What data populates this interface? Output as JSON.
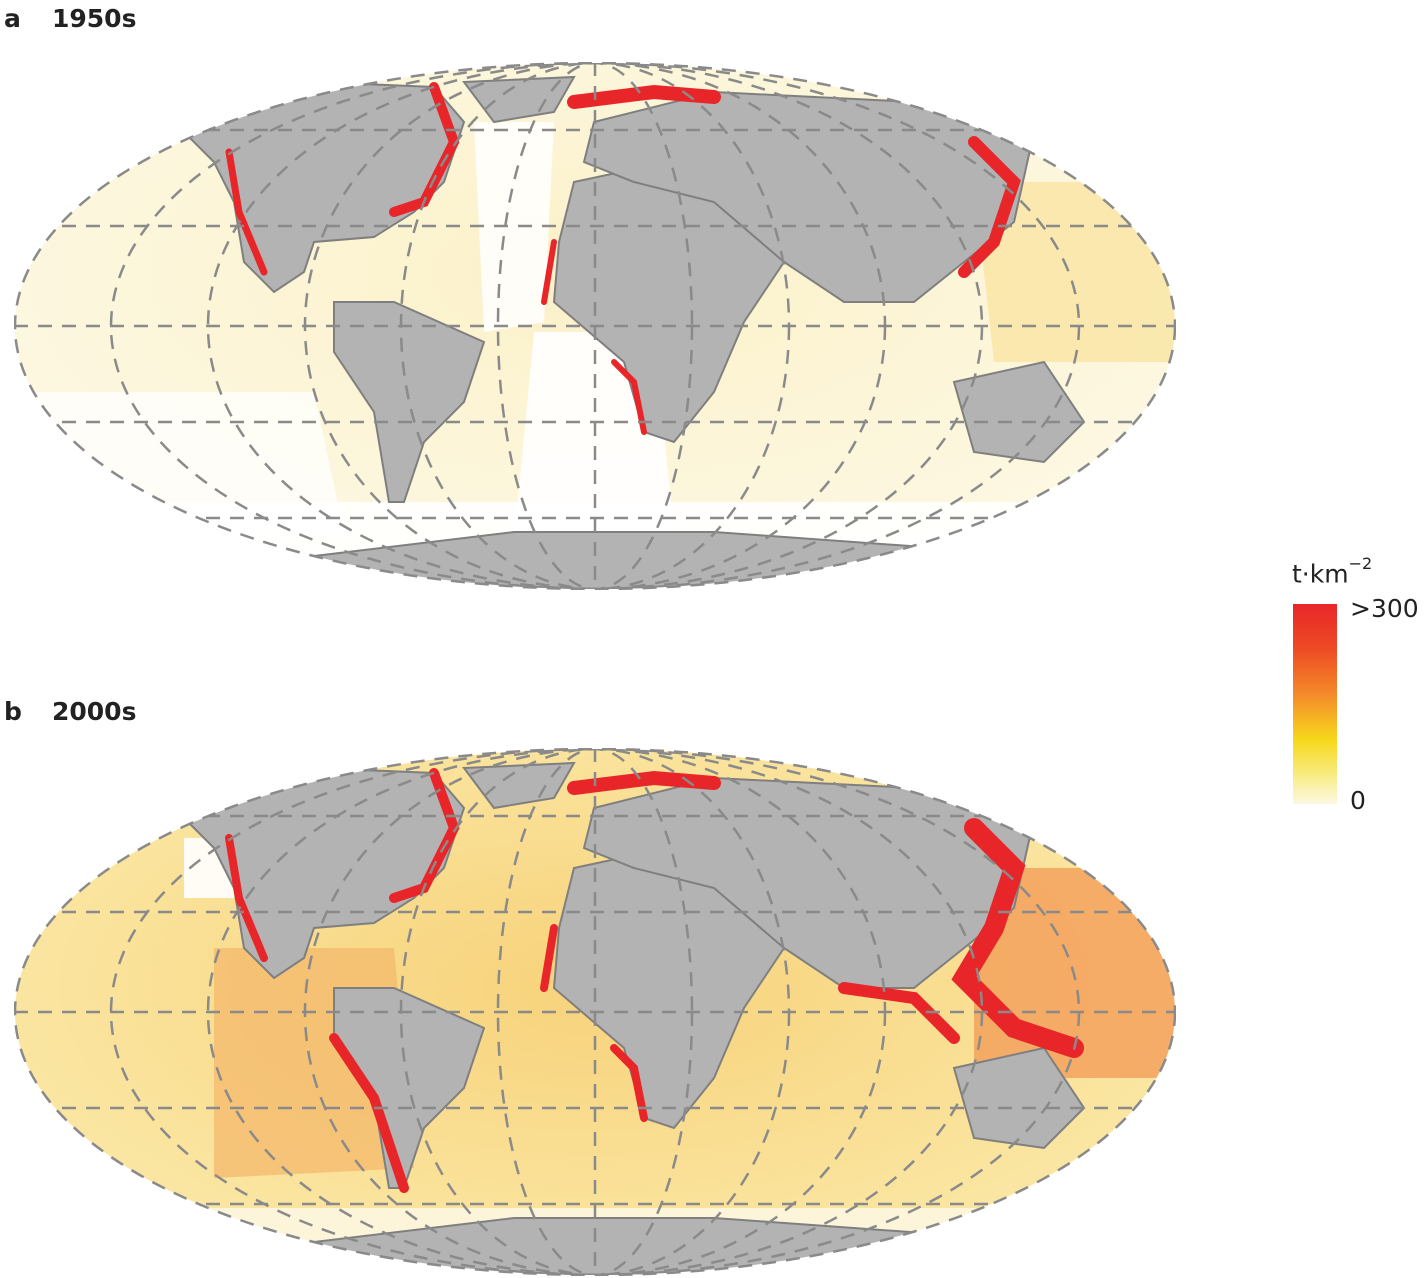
{
  "panels": [
    {
      "letter": "a",
      "label": "1950s"
    },
    {
      "letter": "b",
      "label": "2000s"
    }
  ],
  "legend": {
    "unit": "t·km",
    "unit_exponent": "−2",
    "max_label": ">300",
    "min_label": "0",
    "colors": {
      "high": "#e8262a",
      "mid": "#f48a2a",
      "low": "#f7d81c",
      "zero": "#fcf8e2"
    }
  },
  "colors": {
    "land": "#b3b3b3",
    "land_edge": "#7f7f7f",
    "grid": "#8a8a8a"
  }
}
